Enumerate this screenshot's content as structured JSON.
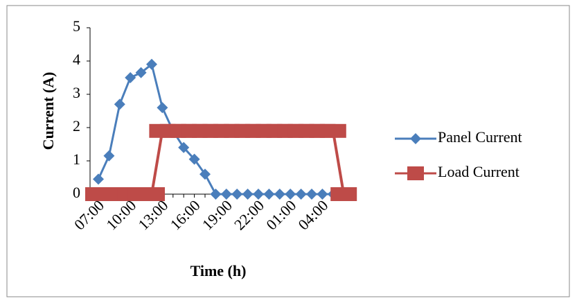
{
  "chart_data": {
    "type": "line",
    "y_label": "Current (A)",
    "x_label": "Time (h)",
    "categories": [
      "07:00",
      null,
      null,
      "10:00",
      null,
      null,
      "13:00",
      null,
      null,
      "16:00",
      null,
      null,
      "19:00",
      null,
      null,
      "22:00",
      null,
      null,
      "01:00",
      null,
      null,
      "04:00",
      null,
      null
    ],
    "series": [
      {
        "name": "Panel Current",
        "color": "#4a7ebb",
        "marker": "diamond",
        "values": [
          0.45,
          1.15,
          2.7,
          3.5,
          3.65,
          3.9,
          2.6,
          1.9,
          1.4,
          1.05,
          0.6,
          0,
          0,
          0,
          0,
          0,
          0,
          0,
          0,
          0,
          0,
          0,
          0,
          null
        ]
      },
      {
        "name": "Load Current",
        "color": "#be4b48",
        "marker": "square",
        "values": [
          0,
          0,
          0,
          0,
          0,
          0,
          1.9,
          1.9,
          1.9,
          1.9,
          1.9,
          1.9,
          1.9,
          1.9,
          1.9,
          1.9,
          1.9,
          1.9,
          1.9,
          1.9,
          1.9,
          1.9,
          1.9,
          0
        ]
      }
    ],
    "ylim": [
      0,
      5
    ],
    "yticks": [
      0,
      1,
      2,
      3,
      4,
      5
    ],
    "grid": false,
    "legend": "right"
  }
}
